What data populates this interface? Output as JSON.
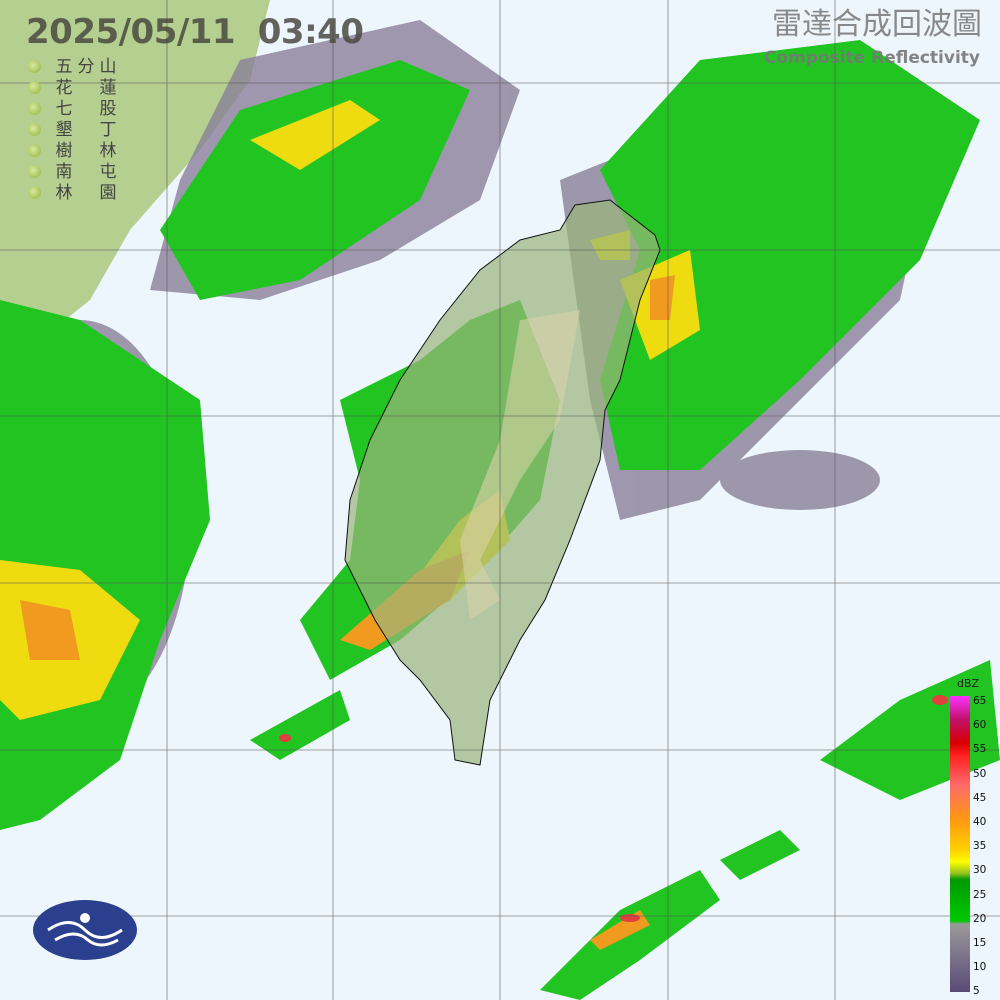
{
  "datetime": "2025/05/11  03:40",
  "title_zh": "雷達合成回波圖",
  "title_en": "Composite Reflectivity",
  "stations": [
    {
      "c1": "五",
      "c2": "分",
      "c3": "山"
    },
    {
      "c1": "花",
      "c2": "",
      "c3": "蓮"
    },
    {
      "c1": "七",
      "c2": "",
      "c3": "股"
    },
    {
      "c1": "墾",
      "c2": "",
      "c3": "丁"
    },
    {
      "c1": "樹",
      "c2": "",
      "c3": "林"
    },
    {
      "c1": "南",
      "c2": "",
      "c3": "屯"
    },
    {
      "c1": "林",
      "c2": "",
      "c3": "園"
    }
  ],
  "colorbar": {
    "unit": "dBZ",
    "labels": [
      "65",
      "60",
      "55",
      "50",
      "45",
      "40",
      "35",
      "30",
      "25",
      "20",
      "15",
      "10",
      "5"
    ],
    "colors": [
      "#ff00ff",
      "#c80064",
      "#c80000",
      "#ff0000",
      "#ff6464",
      "#ff9600",
      "#ffc800",
      "#ffff00",
      "#96c800",
      "#009600",
      "#00c800",
      "#969696",
      "#5a4b78"
    ]
  },
  "colors": {
    "ocean": "#eef6fd",
    "land": "#9ab57a",
    "echo_weak": "#8a8098",
    "echo_green": "#22c422",
    "echo_yellow": "#f0e000",
    "echo_orange": "#f09a20",
    "echo_red": "#e04040"
  },
  "logo": "cwa-logo"
}
